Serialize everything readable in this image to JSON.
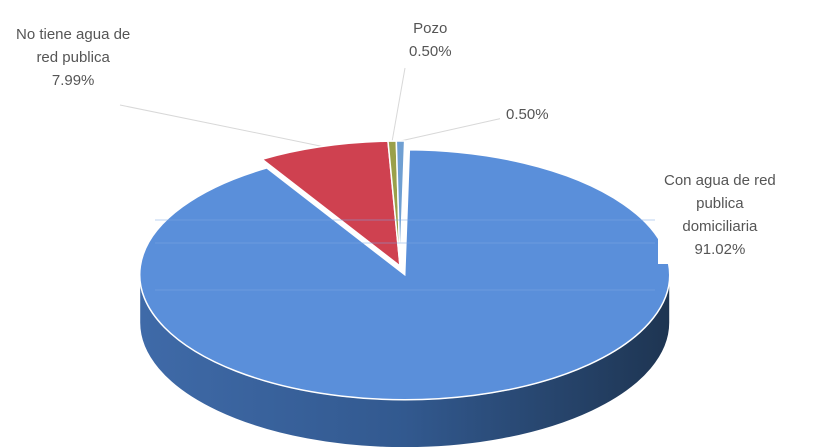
{
  "chart_data": {
    "type": "pie",
    "title": "",
    "slices": [
      {
        "name_lines": [
          "Con agua de red",
          "publica",
          "domiciliaria"
        ],
        "pct_label": "91.02%",
        "value": 91.02,
        "color": "#5a8fda",
        "exploded": true
      },
      {
        "name_lines": [
          "No tiene agua de",
          "red publica"
        ],
        "pct_label": "7.99%",
        "value": 7.99,
        "color": "#cf4150",
        "exploded": false
      },
      {
        "name_lines": [
          "Pozo"
        ],
        "pct_label": "0.50%",
        "value": 0.5,
        "color": "#9aa04a",
        "exploded": false
      },
      {
        "name_lines": [],
        "pct_label": "0.50%",
        "value": 0.5,
        "color": "#6f9fd2",
        "exploded": false
      }
    ],
    "legend": "none",
    "style": "3d-exploded"
  }
}
